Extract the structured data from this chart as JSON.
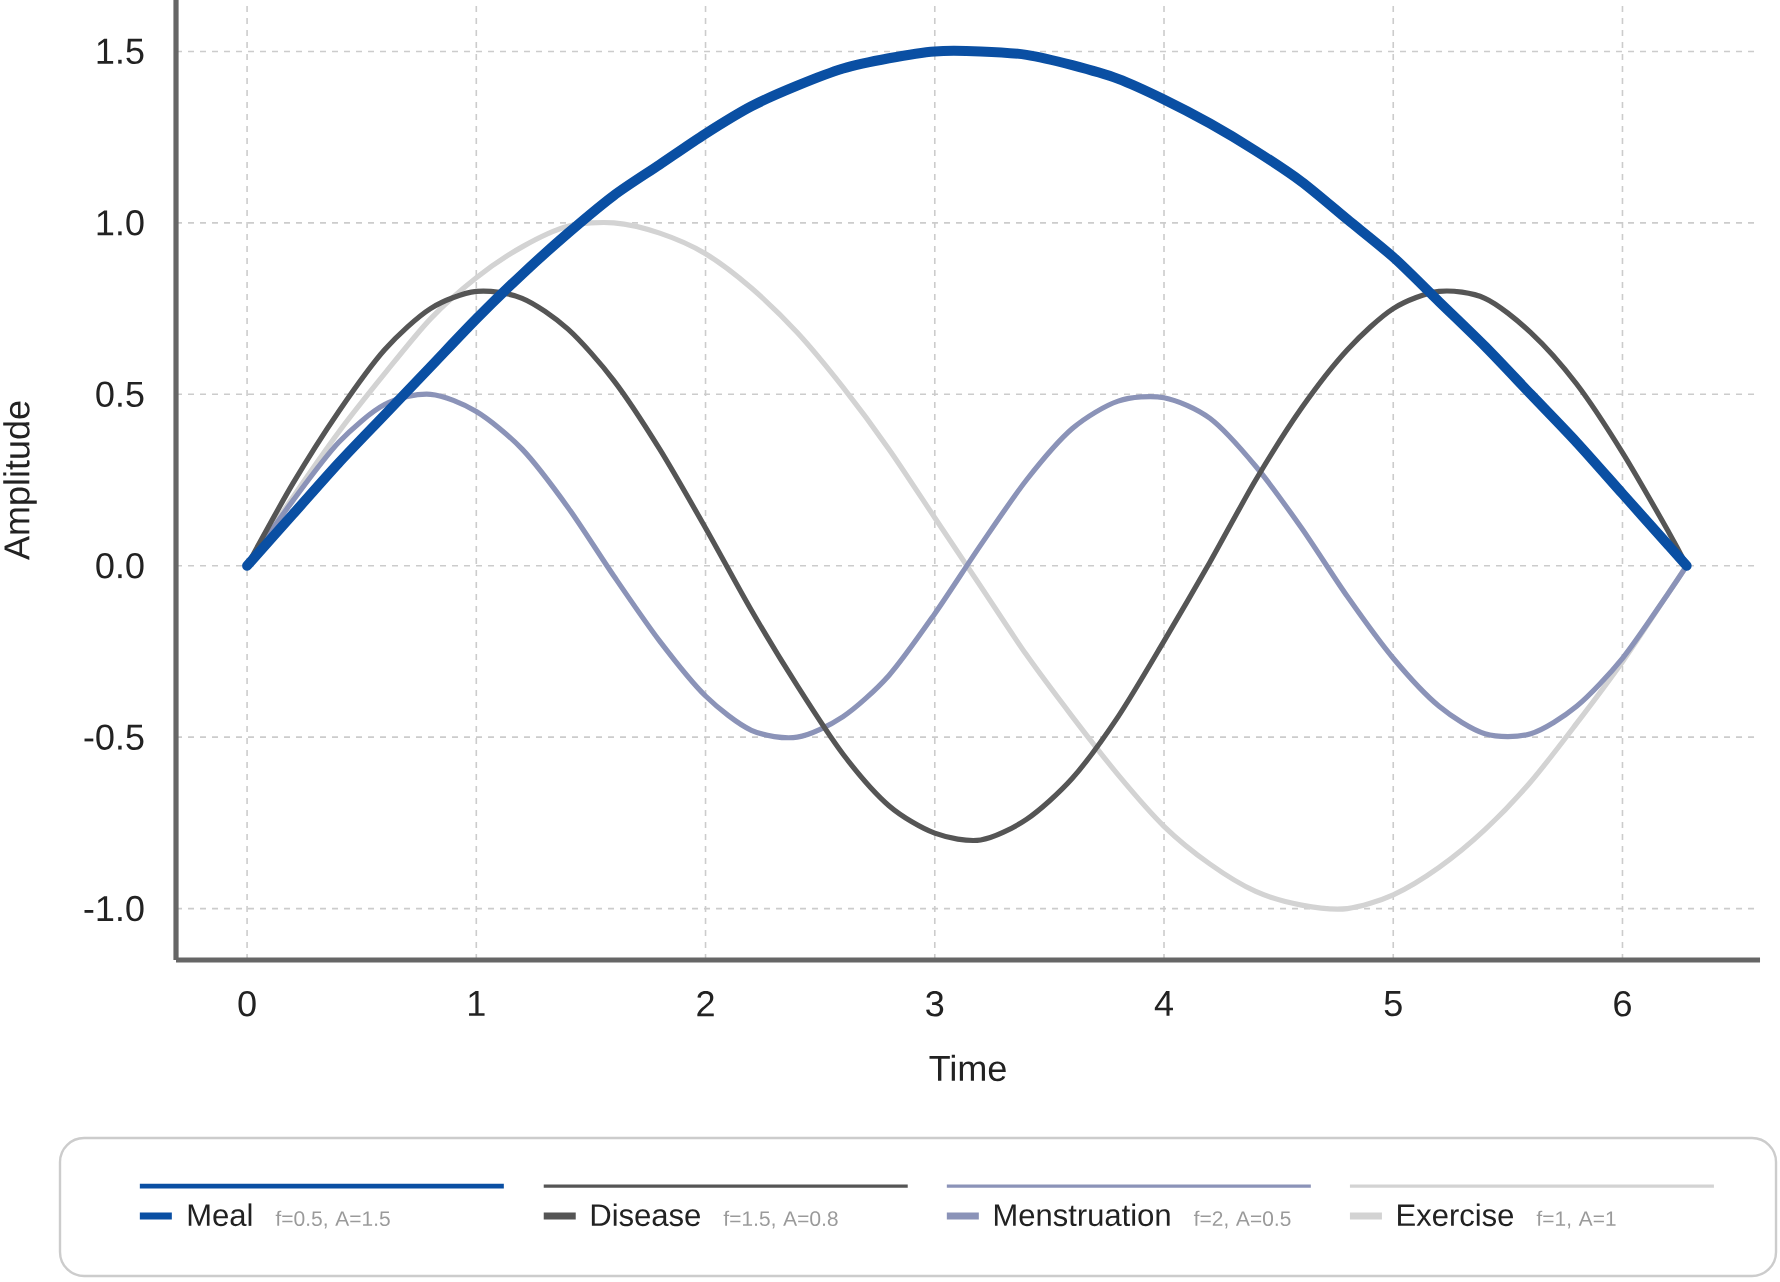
{
  "chart_data": {
    "type": "line",
    "xlabel": "Time",
    "ylabel": "Amplitude",
    "x": [
      0,
      0.2,
      0.4,
      0.6,
      0.8,
      1.0,
      1.2,
      1.4,
      1.6,
      1.8,
      2.0,
      2.2,
      2.4,
      2.6,
      2.8,
      3.0,
      3.2,
      3.4,
      3.6,
      3.8,
      4.0,
      4.2,
      4.4,
      4.6,
      4.8,
      5.0,
      5.2,
      5.4,
      5.6,
      5.8,
      6.0,
      6.2,
      6.28
    ],
    "series": [
      {
        "name": "Meal",
        "color": "#0a4fa3",
        "values": [
          0,
          0.15,
          0.3,
          0.44,
          0.58,
          0.72,
          0.85,
          0.97,
          1.08,
          1.17,
          1.26,
          1.34,
          1.4,
          1.45,
          1.48,
          1.5,
          1.5,
          1.49,
          1.46,
          1.42,
          1.36,
          1.29,
          1.21,
          1.12,
          1.01,
          0.9,
          0.77,
          0.64,
          0.5,
          0.36,
          0.21,
          0.06,
          0
        ]
      },
      {
        "name": "Disease",
        "color": "#555555",
        "values": [
          0,
          0.24,
          0.45,
          0.63,
          0.75,
          0.8,
          0.78,
          0.69,
          0.54,
          0.34,
          0.11,
          -0.13,
          -0.35,
          -0.55,
          -0.7,
          -0.78,
          -0.8,
          -0.74,
          -0.62,
          -0.44,
          -0.22,
          0.01,
          0.25,
          0.46,
          0.63,
          0.75,
          0.8,
          0.78,
          0.68,
          0.53,
          0.33,
          0.1,
          0
        ]
      },
      {
        "name": "Menstruation",
        "color": "#8b93b8",
        "values": [
          0,
          0.19,
          0.36,
          0.47,
          0.5,
          0.45,
          0.34,
          0.17,
          -0.03,
          -0.22,
          -0.38,
          -0.48,
          -0.5,
          -0.44,
          -0.32,
          -0.14,
          0.06,
          0.25,
          0.4,
          0.48,
          0.49,
          0.43,
          0.29,
          0.11,
          -0.09,
          -0.27,
          -0.41,
          -0.49,
          -0.49,
          -0.41,
          -0.27,
          -0.08,
          0
        ]
      },
      {
        "name": "Exercise",
        "color": "#d3d3d3",
        "values": [
          0,
          0.2,
          0.39,
          0.56,
          0.72,
          0.84,
          0.93,
          0.99,
          1.0,
          0.97,
          0.91,
          0.81,
          0.68,
          0.52,
          0.34,
          0.14,
          -0.06,
          -0.26,
          -0.44,
          -0.61,
          -0.76,
          -0.87,
          -0.95,
          -0.99,
          -1.0,
          -0.96,
          -0.88,
          -0.77,
          -0.63,
          -0.46,
          -0.28,
          -0.08,
          0
        ]
      }
    ],
    "annotations": [
      "f=0.5, A=1.5",
      "f=1.5, A=0.8",
      "f=2, A=0.5",
      "f=1, A=1"
    ],
    "xlim": [
      -0.31,
      6.6
    ],
    "ylim": [
      -1.15,
      1.65
    ],
    "xticks": [
      0,
      1,
      2,
      3,
      4,
      5,
      6
    ],
    "yticks": [
      {
        "value": -1.0,
        "label": "-1.0"
      },
      {
        "value": -0.5,
        "label": "-0.5"
      },
      {
        "value": 0,
        "label": "0.0"
      },
      {
        "value": 0.5,
        "label": "0.5"
      },
      {
        "value": 1.0,
        "label": "1.0"
      },
      {
        "value": 1.5,
        "label": "1.5"
      }
    ],
    "grid": true,
    "legend": "bottom"
  }
}
